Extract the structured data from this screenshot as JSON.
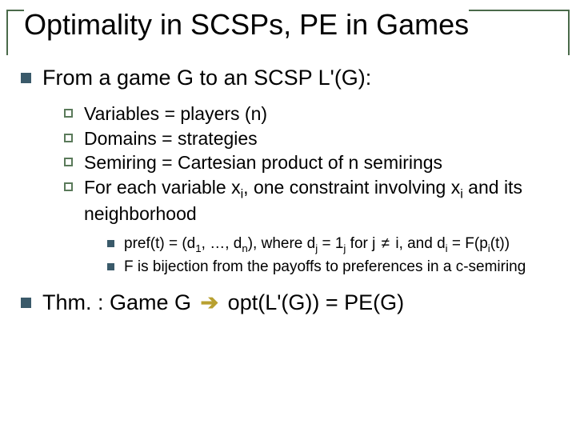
{
  "colors": {
    "frame_border": "#4a6a4a",
    "bullet_l1": "#3a5a6a",
    "bullet_l2": "#5a7a5a",
    "bullet_l3": "#3a5a6a",
    "arrow": "#b8a030"
  },
  "title": "Optimality in SCSPs, PE in Games",
  "l1_a": "From a game G to an SCSP L'(G):",
  "sub": {
    "a": "Variables = players (n)",
    "b": "Domains = strategies",
    "c": "Semiring = Cartesian product of n semirings",
    "d_pre": "For each variable x",
    "d_mid": ", one constraint involving x",
    "d_post": " and its neighborhood",
    "d_sub": "i"
  },
  "subsub": {
    "a_1": "pref(t) = (d",
    "a_2": ", …, d",
    "a_3": "), where d",
    "a_4": " = 1",
    "a_5": " for j ",
    "a_6": " i, and d",
    "a_7": " = F(p",
    "a_8": "(t))",
    "a_s1": "1",
    "a_sn": "n",
    "a_sj": "j",
    "a_si": "i",
    "neq": "≠",
    "b": "F is bijection from the payoffs to preferences in a c-semiring"
  },
  "thm": {
    "pre": "Thm. : Game G ",
    "arrow": "➔",
    "post": " opt(L'(G)) = PE(G)"
  }
}
